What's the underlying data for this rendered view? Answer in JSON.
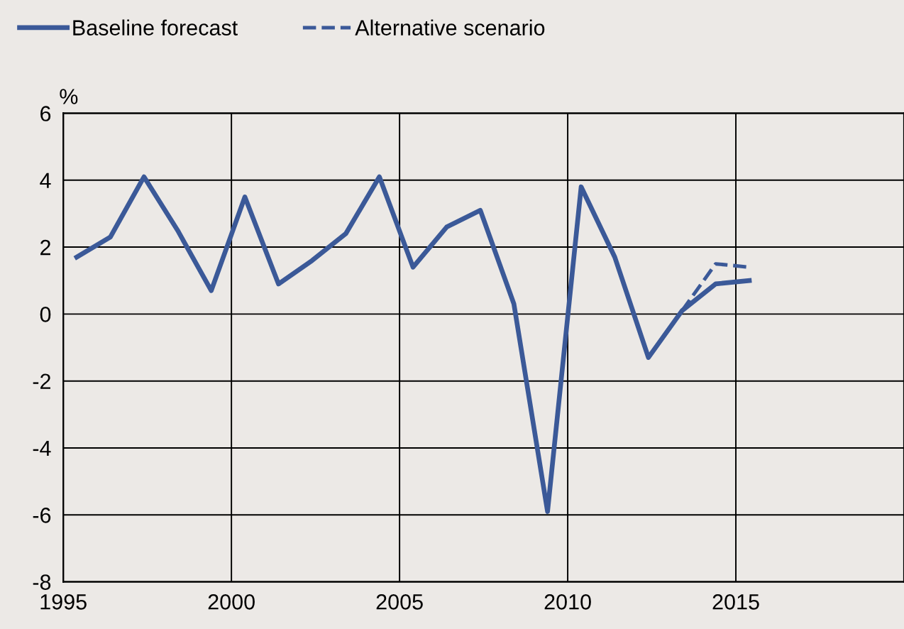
{
  "chart_data": {
    "type": "line",
    "ylabel": "%",
    "series": [
      {
        "name": "Baseline forecast",
        "color": "#3b5998",
        "line_style": "solid",
        "x": [
          1995.4,
          1996.4,
          1997.4,
          1998.4,
          1999.4,
          2000.4,
          2001.4,
          2002.4,
          2003.4,
          2004.4,
          2005.4,
          2006.4,
          2007.4,
          2008.4,
          2009.4,
          2010.4,
          2011.4,
          2012.4,
          2013.4,
          2014.4,
          2015.4
        ],
        "values": [
          1.7,
          2.3,
          4.1,
          2.5,
          0.7,
          3.5,
          0.9,
          1.6,
          2.4,
          4.1,
          1.4,
          2.6,
          3.1,
          0.3,
          -5.9,
          3.8,
          1.7,
          -1.3,
          0.1,
          0.9,
          1.0
        ]
      },
      {
        "name": "Alternative scenario",
        "color": "#3b5998",
        "line_style": "dashed",
        "x": [
          2013.4,
          2014.4,
          2015.4
        ],
        "values": [
          0.1,
          1.5,
          1.4
        ]
      }
    ],
    "xlim": [
      1995,
      2020
    ],
    "xticks": [
      1995,
      2000,
      2005,
      2010,
      2015
    ],
    "ylim": [
      -8,
      6
    ],
    "yticks": [
      -8,
      -6,
      -4,
      -2,
      0,
      2,
      4,
      6
    ],
    "grid": true,
    "legend": "top left"
  }
}
